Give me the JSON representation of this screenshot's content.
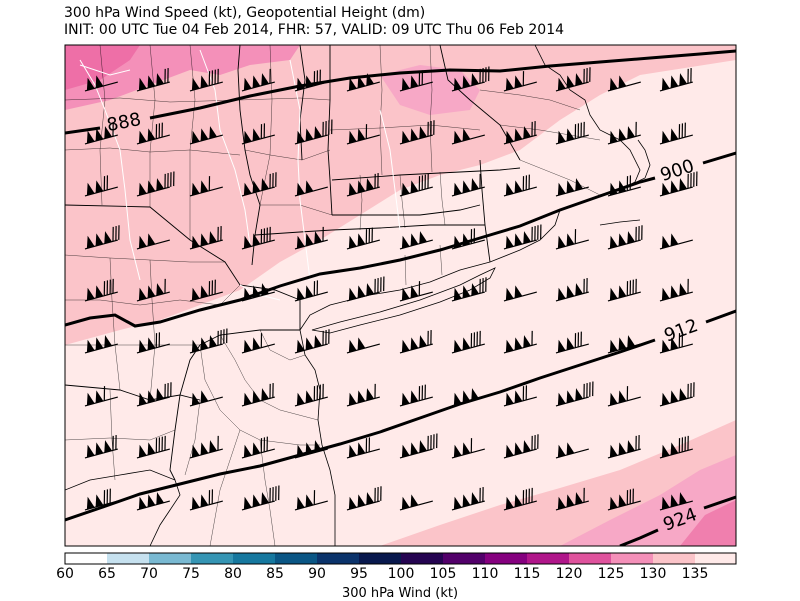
{
  "title": {
    "line1": "300 hPa Wind Speed (kt), Geopotential Height (dm)",
    "line2": "INIT: 00 UTC Tue 04 Feb 2014, FHR: 57, VALID: 09 UTC Thu 06 Feb 2014"
  },
  "contours": {
    "units": "dm",
    "labels": [
      "888",
      "900",
      "912",
      "924"
    ]
  },
  "colorbar": {
    "title": "300 hPa Wind (kt)",
    "tick_labels": [
      "60",
      "65",
      "70",
      "75",
      "80",
      "85",
      "90",
      "95",
      "100",
      "105",
      "110",
      "115",
      "120",
      "125",
      "130",
      "135"
    ],
    "colors": [
      "#ffffff",
      "#c6e1ef",
      "#79b9d2",
      "#3595b4",
      "#16789f",
      "#0a5685",
      "#0b336b",
      "#08184d",
      "#250451",
      "#52006a",
      "#85007f",
      "#b0168a",
      "#df539d",
      "#f490b9",
      "#fbc4c9",
      "#ffeae9",
      "#ffffff"
    ]
  }
}
